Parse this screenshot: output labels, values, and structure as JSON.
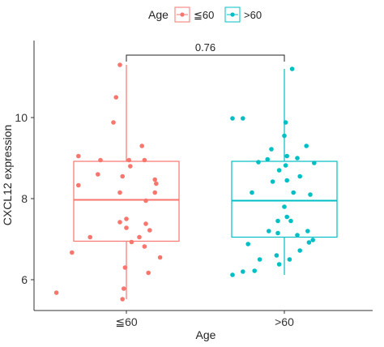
{
  "chart_data": {
    "type": "boxplot",
    "title": "",
    "xlabel": "Age",
    "ylabel": "CXCL12 expression",
    "ylim": [
      5.4,
      12.0
    ],
    "yticks": [
      6,
      8,
      10
    ],
    "grid": false,
    "legend": {
      "title": "Age",
      "position": "top",
      "entries": [
        {
          "label": "≦60",
          "color": "#F8766D"
        },
        {
          "label": ">60",
          "color": "#00BFC4"
        }
      ]
    },
    "comparison": {
      "label": "0.76",
      "groups": [
        "≦60",
        ">60"
      ]
    },
    "categories": [
      "≦60",
      ">60"
    ],
    "series": [
      {
        "name": "≦60",
        "color": "#F8766D",
        "box": {
          "q1": 6.95,
          "median": 7.97,
          "q3": 8.92,
          "whisker_low": 5.52,
          "whisker_high": 11.3
        },
        "points": [
          [
            -0.05,
            11.3
          ],
          [
            -0.08,
            10.5
          ],
          [
            -0.1,
            9.88
          ],
          [
            0.12,
            9.3
          ],
          [
            -0.37,
            9.05
          ],
          [
            -0.2,
            8.95
          ],
          [
            0.02,
            8.95
          ],
          [
            0.14,
            8.95
          ],
          [
            0.03,
            8.8
          ],
          [
            -0.22,
            8.6
          ],
          [
            -0.03,
            8.55
          ],
          [
            0.22,
            8.47
          ],
          [
            0.23,
            8.37
          ],
          [
            -0.37,
            8.33
          ],
          [
            0.22,
            8.15
          ],
          [
            -0.05,
            8.15
          ],
          [
            0.15,
            7.95
          ],
          [
            0.0,
            7.5
          ],
          [
            -0.05,
            7.42
          ],
          [
            0.15,
            7.38
          ],
          [
            0.0,
            7.28
          ],
          [
            0.18,
            7.22
          ],
          [
            0.1,
            7.05
          ],
          [
            -0.28,
            7.05
          ],
          [
            0.04,
            6.93
          ],
          [
            0.14,
            6.82
          ],
          [
            -0.42,
            6.67
          ],
          [
            0.26,
            6.55
          ],
          [
            -0.01,
            6.3
          ],
          [
            0.17,
            6.17
          ],
          [
            -0.02,
            5.78
          ],
          [
            -0.54,
            5.68
          ],
          [
            -0.03,
            5.52
          ]
        ]
      },
      {
        "name": ">60",
        "color": "#00BFC4",
        "box": {
          "q1": 7.05,
          "median": 7.95,
          "q3": 8.92,
          "whisker_low": 6.12,
          "whisker_high": 11.2
        },
        "points": [
          [
            0.06,
            11.2
          ],
          [
            -0.4,
            9.98
          ],
          [
            -0.32,
            9.98
          ],
          [
            0.01,
            9.88
          ],
          [
            0.0,
            9.55
          ],
          [
            0.17,
            9.3
          ],
          [
            -0.1,
            9.22
          ],
          [
            0.02,
            9.05
          ],
          [
            0.1,
            9.0
          ],
          [
            -0.13,
            8.97
          ],
          [
            0.23,
            8.88
          ],
          [
            -0.2,
            8.9
          ],
          [
            0.01,
            8.82
          ],
          [
            -0.04,
            8.7
          ],
          [
            0.12,
            8.55
          ],
          [
            -0.09,
            8.42
          ],
          [
            0.02,
            8.45
          ],
          [
            0.07,
            8.15
          ],
          [
            -0.25,
            8.15
          ],
          [
            0.2,
            8.1
          ],
          [
            0.0,
            7.8
          ],
          [
            0.02,
            7.55
          ],
          [
            -0.05,
            7.45
          ],
          [
            0.05,
            7.45
          ],
          [
            -0.12,
            7.2
          ],
          [
            0.18,
            7.2
          ],
          [
            -0.05,
            7.15
          ],
          [
            0.1,
            7.1
          ],
          [
            0.22,
            6.98
          ],
          [
            0.19,
            6.92
          ],
          [
            -0.28,
            6.88
          ],
          [
            0.12,
            6.72
          ],
          [
            -0.19,
            6.5
          ],
          [
            -0.06,
            6.6
          ],
          [
            0.04,
            6.5
          ],
          [
            -0.04,
            6.38
          ],
          [
            -0.32,
            6.2
          ],
          [
            -0.23,
            6.22
          ],
          [
            -0.4,
            6.12
          ]
        ]
      }
    ]
  }
}
